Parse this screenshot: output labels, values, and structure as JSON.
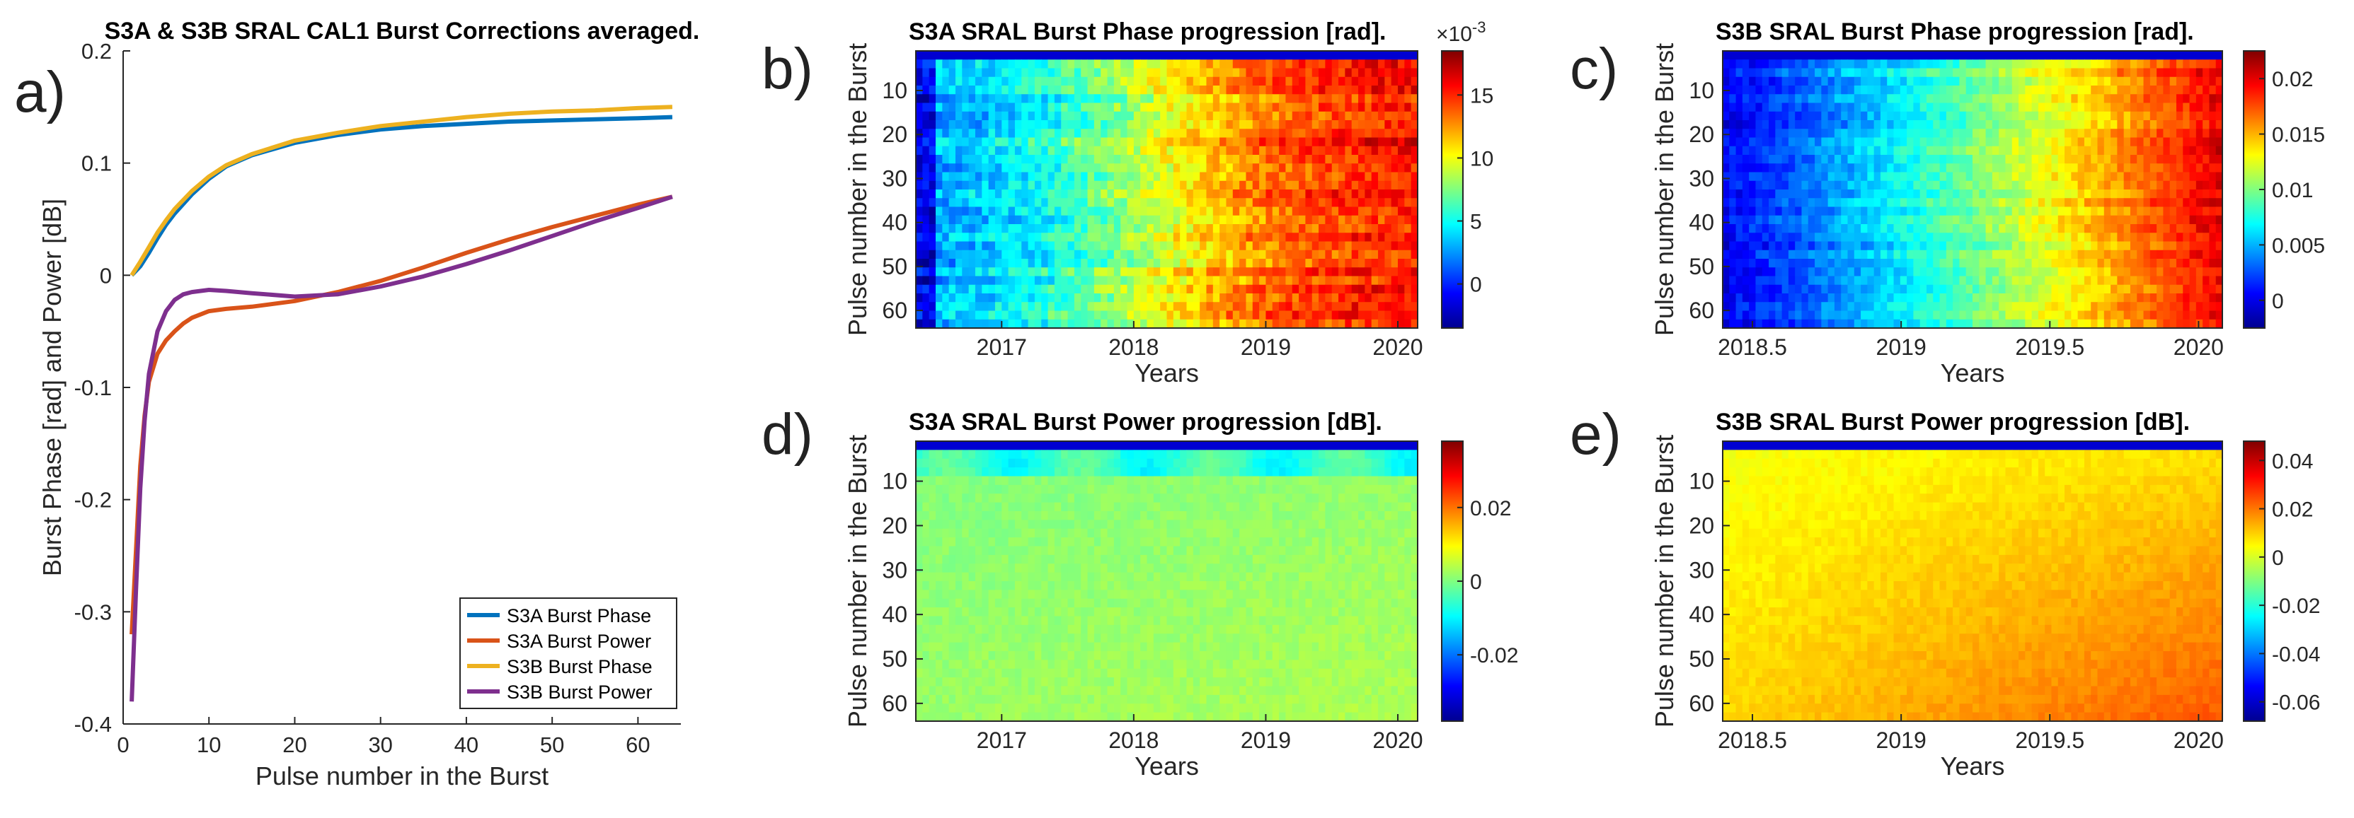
{
  "figure": {
    "panel_letters": [
      "a)",
      "b)",
      "c)",
      "d)",
      "e)"
    ]
  },
  "chart_data": [
    {
      "id": "a",
      "type": "line",
      "title": "S3A & S3B SRAL CAL1 Burst Corrections averaged.",
      "xlabel": "Pulse number in the Burst",
      "ylabel": "Burst Phase [rad] and Power [dB]",
      "xlim": [
        0,
        65
      ],
      "ylim": [
        -0.4,
        0.2
      ],
      "xticks": [
        0,
        10,
        20,
        30,
        40,
        50,
        60
      ],
      "yticks": [
        -0.4,
        -0.3,
        -0.2,
        -0.1,
        0,
        0.1,
        0.2
      ],
      "legend_position": "bottom-right",
      "series": [
        {
          "name": "S3A Burst Phase",
          "color": "#0072BD",
          "x": [
            1,
            2,
            3,
            4,
            5,
            6,
            8,
            10,
            12,
            15,
            20,
            25,
            30,
            35,
            40,
            45,
            50,
            55,
            60,
            64
          ],
          "y": [
            0.0,
            0.008,
            0.02,
            0.033,
            0.045,
            0.055,
            0.072,
            0.086,
            0.097,
            0.107,
            0.118,
            0.125,
            0.13,
            0.133,
            0.135,
            0.137,
            0.138,
            0.139,
            0.14,
            0.141
          ]
        },
        {
          "name": "S3A Burst Power",
          "color": "#D95319",
          "x": [
            1,
            1.5,
            2,
            2.5,
            3,
            4,
            5,
            6,
            7,
            8,
            10,
            12,
            15,
            20,
            25,
            30,
            35,
            40,
            45,
            50,
            55,
            60,
            64
          ],
          "y": [
            -0.32,
            -0.245,
            -0.17,
            -0.125,
            -0.095,
            -0.07,
            -0.058,
            -0.05,
            -0.043,
            -0.038,
            -0.032,
            -0.03,
            -0.028,
            -0.023,
            -0.015,
            -0.005,
            0.007,
            0.02,
            0.032,
            0.043,
            0.053,
            0.063,
            0.07
          ]
        },
        {
          "name": "S3B Burst Phase",
          "color": "#EDB120",
          "x": [
            1,
            2,
            3,
            4,
            5,
            6,
            8,
            10,
            12,
            15,
            20,
            25,
            30,
            35,
            40,
            45,
            50,
            55,
            60,
            64
          ],
          "y": [
            0.0,
            0.012,
            0.025,
            0.038,
            0.049,
            0.059,
            0.075,
            0.088,
            0.098,
            0.108,
            0.12,
            0.127,
            0.133,
            0.137,
            0.141,
            0.144,
            0.146,
            0.147,
            0.149,
            0.15
          ]
        },
        {
          "name": "S3B Burst Power",
          "color": "#7E2F8E",
          "x": [
            1,
            1.5,
            2,
            2.5,
            3,
            4,
            5,
            6,
            7,
            8,
            10,
            12,
            15,
            20,
            25,
            30,
            35,
            40,
            45,
            50,
            55,
            60,
            64
          ],
          "y": [
            -0.38,
            -0.28,
            -0.19,
            -0.13,
            -0.088,
            -0.05,
            -0.032,
            -0.022,
            -0.017,
            -0.015,
            -0.013,
            -0.014,
            -0.016,
            -0.019,
            -0.017,
            -0.01,
            -0.001,
            0.01,
            0.022,
            0.035,
            0.048,
            0.06,
            0.07
          ]
        }
      ]
    },
    {
      "id": "b",
      "type": "heatmap",
      "title": "S3A SRAL Burst Phase progression [rad].",
      "xlabel": "Years",
      "ylabel": "Pulse number in the Burst",
      "xlim": [
        2016.35,
        2020.15
      ],
      "ylim": [
        1,
        64
      ],
      "xticks": [
        2017,
        2018,
        2019,
        2020
      ],
      "yticks": [
        10,
        20,
        30,
        40,
        50,
        60
      ],
      "clim": [
        -0.0035,
        0.0185
      ],
      "colorbar_ticks": [
        0,
        5,
        10,
        15
      ],
      "colorbar_multiplier": "×10",
      "colorbar_exponent": "-3",
      "trend_summary": {
        "start_level": 0.002,
        "end_level": 0.016
      }
    },
    {
      "id": "c",
      "type": "heatmap",
      "title": "S3B SRAL Burst Phase progression [rad].",
      "xlabel": "Years",
      "ylabel": "Pulse number in the Burst",
      "xlim": [
        2018.4,
        2020.08
      ],
      "ylim": [
        1,
        64
      ],
      "xticks": [
        2018.5,
        2019,
        2019.5,
        2020
      ],
      "yticks": [
        10,
        20,
        30,
        40,
        50,
        60
      ],
      "clim": [
        -0.0025,
        0.0225
      ],
      "colorbar_ticks": [
        0,
        0.005,
        0.01,
        0.015,
        0.02
      ],
      "trend_summary": {
        "start_level": 0.0005,
        "end_level": 0.02
      }
    },
    {
      "id": "d",
      "type": "heatmap",
      "title": "S3A SRAL Burst Power progression [dB].",
      "xlabel": "Years",
      "ylabel": "Pulse number in the Burst",
      "xlim": [
        2016.35,
        2020.15
      ],
      "ylim": [
        1,
        64
      ],
      "xticks": [
        2017,
        2018,
        2019,
        2020
      ],
      "yticks": [
        10,
        20,
        30,
        40,
        50,
        60
      ],
      "clim": [
        -0.038,
        0.038
      ],
      "colorbar_ticks": [
        -0.02,
        0,
        0.02
      ],
      "trend_summary": {
        "start_level": -0.003,
        "end_level": 0.004
      }
    },
    {
      "id": "e",
      "type": "heatmap",
      "title": "S3B SRAL Burst Power progression [dB].",
      "xlabel": "Years",
      "ylabel": "Pulse number in the Burst",
      "xlim": [
        2018.4,
        2020.08
      ],
      "ylim": [
        1,
        64
      ],
      "xticks": [
        2018.5,
        2019,
        2019.5,
        2020
      ],
      "yticks": [
        10,
        20,
        30,
        40,
        50,
        60
      ],
      "clim": [
        -0.068,
        0.048
      ],
      "colorbar_ticks": [
        -0.06,
        -0.04,
        -0.02,
        0,
        0.02,
        0.04
      ],
      "trend_summary": {
        "start_level": 0.003,
        "end_level": 0.018
      }
    }
  ]
}
